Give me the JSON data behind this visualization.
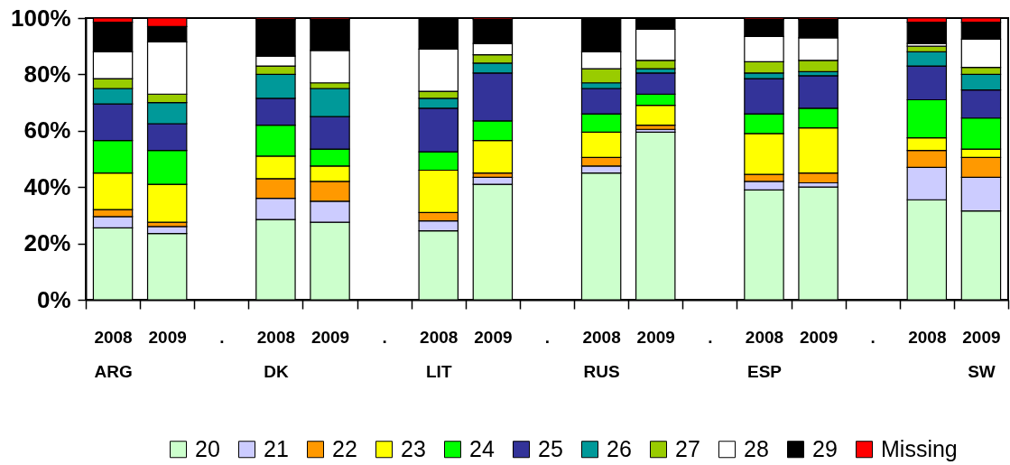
{
  "chart_data": {
    "type": "bar",
    "stacked": true,
    "legend": "bottom",
    "categories": [
      "2008\nARG",
      "2009",
      ".",
      "2008\nDK",
      "2009",
      ".",
      "2008\nLIT",
      "2009",
      ".",
      "2008\nRUS",
      "2009",
      ".",
      "2008\nESP",
      "2009",
      ".",
      "2008",
      "2009\nSW"
    ],
    "ylim": [
      0,
      100
    ],
    "yticks": [
      {
        "value": 0,
        "label": "0%"
      },
      {
        "value": 20,
        "label": "20%"
      },
      {
        "value": 40,
        "label": "40%"
      },
      {
        "value": 60,
        "label": "60%"
      },
      {
        "value": 80,
        "label": "80%"
      },
      {
        "value": 100,
        "label": "100%"
      }
    ],
    "series": [
      {
        "name": "20",
        "color": "#ccffcc",
        "values": [
          25.5,
          23.5,
          null,
          28.5,
          27.5,
          null,
          24.5,
          41,
          null,
          45,
          59.5,
          null,
          39,
          40,
          null,
          35.5,
          31.5
        ]
      },
      {
        "name": "21",
        "color": "#ccccff",
        "values": [
          4,
          2.5,
          null,
          7.5,
          7.5,
          null,
          3.5,
          2.5,
          null,
          2.5,
          1,
          null,
          3,
          1.5,
          null,
          11.5,
          12
        ]
      },
      {
        "name": "22",
        "color": "#ff9900",
        "values": [
          2.5,
          1.5,
          null,
          7,
          7,
          null,
          3,
          1.5,
          null,
          3,
          1.5,
          null,
          2.5,
          3.5,
          null,
          6,
          7
        ]
      },
      {
        "name": "23",
        "color": "#ffff00",
        "values": [
          13,
          13.5,
          null,
          8,
          5.5,
          null,
          15,
          11.5,
          null,
          9,
          7,
          null,
          14.5,
          16,
          null,
          4.5,
          3
        ]
      },
      {
        "name": "24",
        "color": "#00ff00",
        "values": [
          11.5,
          12,
          null,
          11,
          6,
          null,
          6.5,
          7,
          null,
          6.5,
          4,
          null,
          7,
          7,
          null,
          13.5,
          11
        ]
      },
      {
        "name": "25",
        "color": "#333399",
        "values": [
          13,
          9.5,
          null,
          9.5,
          11.5,
          null,
          15.5,
          17,
          null,
          9,
          7.5,
          null,
          12.5,
          11.5,
          null,
          12,
          10
        ]
      },
      {
        "name": "26",
        "color": "#009999",
        "values": [
          5.5,
          7.5,
          null,
          8.5,
          10,
          null,
          3.5,
          3.5,
          null,
          2,
          1.5,
          null,
          2,
          1.5,
          null,
          5,
          5.5
        ]
      },
      {
        "name": "27",
        "color": "#99cc00",
        "values": [
          3.5,
          3,
          null,
          3,
          2,
          null,
          2.5,
          3,
          null,
          5,
          3,
          null,
          4,
          4,
          null,
          2,
          2.5
        ]
      },
      {
        "name": "28",
        "color": "#ffffff",
        "values": [
          9.5,
          18.5,
          null,
          3.5,
          11.5,
          null,
          15,
          4,
          null,
          6,
          11,
          null,
          9,
          8,
          null,
          1,
          10
        ]
      },
      {
        "name": "29",
        "color": "#000000",
        "values": [
          10.5,
          5.5,
          null,
          13,
          11,
          null,
          11,
          8.5,
          null,
          12,
          4,
          null,
          6,
          6.5,
          null,
          7.5,
          6
        ]
      },
      {
        "name": "Missing",
        "color": "#ff0000",
        "values": [
          1.5,
          3,
          null,
          0.5,
          0.5,
          null,
          null,
          0.5,
          null,
          null,
          null,
          null,
          0.5,
          0.5,
          null,
          1.5,
          1.5
        ]
      }
    ]
  }
}
